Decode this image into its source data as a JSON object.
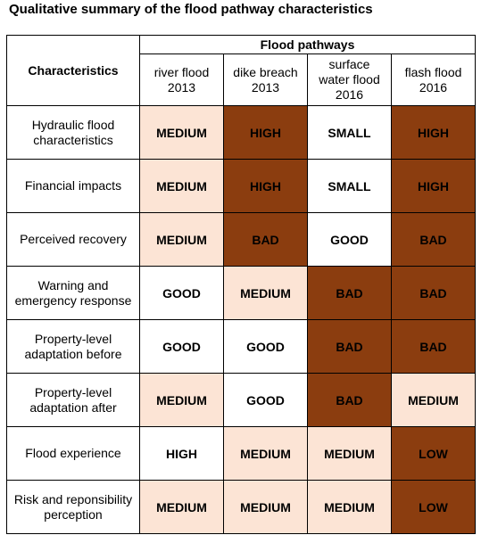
{
  "title": "Qualitative summary of the flood pathway characteristics",
  "header": {
    "characteristics": "Characteristics",
    "group": "Flood pathways",
    "columns": [
      "river flood\n2013",
      "dike breach\n2013",
      "surface\nwater flood\n2016",
      "flash flood\n2016"
    ]
  },
  "colors": {
    "white": "#ffffff",
    "light": "#fce4d5",
    "dark": "#8b3d0f"
  },
  "rows": [
    {
      "label": "Hydraulic flood\ncharacteristics",
      "cells": [
        "MEDIUM",
        "HIGH",
        "SMALL",
        "HIGH"
      ],
      "shade": [
        "light",
        "dark",
        "white",
        "dark"
      ]
    },
    {
      "label": "Financial impacts",
      "cells": [
        "MEDIUM",
        "HIGH",
        "SMALL",
        "HIGH"
      ],
      "shade": [
        "light",
        "dark",
        "white",
        "dark"
      ]
    },
    {
      "label": "Perceived recovery",
      "cells": [
        "MEDIUM",
        "BAD",
        "GOOD",
        "BAD"
      ],
      "shade": [
        "light",
        "dark",
        "white",
        "dark"
      ]
    },
    {
      "label": "Warning and\nemergency response",
      "cells": [
        "GOOD",
        "MEDIUM",
        "BAD",
        "BAD"
      ],
      "shade": [
        "white",
        "light",
        "dark",
        "dark"
      ]
    },
    {
      "label": "Property-level\nadaptation before",
      "cells": [
        "GOOD",
        "GOOD",
        "BAD",
        "BAD"
      ],
      "shade": [
        "white",
        "white",
        "dark",
        "dark"
      ]
    },
    {
      "label": "Property-level\nadaptation after",
      "cells": [
        "MEDIUM",
        "GOOD",
        "BAD",
        "MEDIUM"
      ],
      "shade": [
        "light",
        "white",
        "dark",
        "light"
      ]
    },
    {
      "label": "Flood experience",
      "cells": [
        "HIGH",
        "MEDIUM",
        "MEDIUM",
        "LOW"
      ],
      "shade": [
        "white",
        "light",
        "light",
        "dark"
      ]
    },
    {
      "label": "Risk and reponsibility\nperception",
      "cells": [
        "MEDIUM",
        "MEDIUM",
        "MEDIUM",
        "LOW"
      ],
      "shade": [
        "light",
        "light",
        "light",
        "dark"
      ]
    }
  ]
}
